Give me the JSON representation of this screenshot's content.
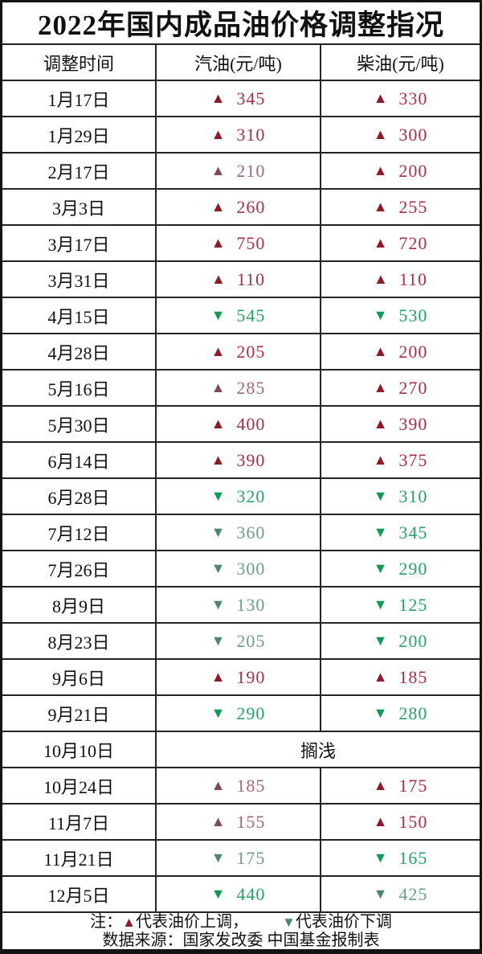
{
  "title": "2022年国内成品油价格调整指况",
  "columns": [
    "调整时间",
    "汽油(元/吨)",
    "柴油(元/吨)"
  ],
  "symbols": {
    "up": "▲",
    "down": "▼"
  },
  "colors": {
    "border": "#242424",
    "up_vivid_tri": "#8e1a2c",
    "up_vivid_txt": "#a33247",
    "up_muted_tri": "#7f4a57",
    "up_muted_txt": "#9e6b77",
    "down_vivid_tri": "#0f9a58",
    "down_vivid_txt": "#2aa069",
    "down_muted_tri": "#4f8571",
    "down_muted_txt": "#6d9c8c"
  },
  "rows": [
    {
      "date": "1月17日",
      "gasoline": {
        "dir": "up",
        "value": "345",
        "tone": "vivid"
      },
      "diesel": {
        "dir": "up",
        "value": "330",
        "tone": "vivid"
      }
    },
    {
      "date": "1月29日",
      "gasoline": {
        "dir": "up",
        "value": "310",
        "tone": "vivid"
      },
      "diesel": {
        "dir": "up",
        "value": "300",
        "tone": "vivid"
      }
    },
    {
      "date": "2月17日",
      "gasoline": {
        "dir": "up",
        "value": "210",
        "tone": "muted"
      },
      "diesel": {
        "dir": "up",
        "value": "200",
        "tone": "vivid"
      }
    },
    {
      "date": "3月3日",
      "gasoline": {
        "dir": "up",
        "value": "260",
        "tone": "vivid"
      },
      "diesel": {
        "dir": "up",
        "value": "255",
        "tone": "vivid"
      }
    },
    {
      "date": "3月17日",
      "gasoline": {
        "dir": "up",
        "value": "750",
        "tone": "vivid"
      },
      "diesel": {
        "dir": "up",
        "value": "720",
        "tone": "vivid"
      }
    },
    {
      "date": "3月31日",
      "gasoline": {
        "dir": "up",
        "value": "110",
        "tone": "vivid"
      },
      "diesel": {
        "dir": "up",
        "value": "110",
        "tone": "vivid"
      }
    },
    {
      "date": "4月15日",
      "gasoline": {
        "dir": "down",
        "value": "545",
        "tone": "vivid"
      },
      "diesel": {
        "dir": "down",
        "value": "530",
        "tone": "vivid"
      }
    },
    {
      "date": "4月28日",
      "gasoline": {
        "dir": "up",
        "value": "205",
        "tone": "vivid"
      },
      "diesel": {
        "dir": "up",
        "value": "200",
        "tone": "vivid"
      }
    },
    {
      "date": "5月16日",
      "gasoline": {
        "dir": "up",
        "value": "285",
        "tone": "muted"
      },
      "diesel": {
        "dir": "up",
        "value": "270",
        "tone": "vivid"
      }
    },
    {
      "date": "5月30日",
      "gasoline": {
        "dir": "up",
        "value": "400",
        "tone": "vivid"
      },
      "diesel": {
        "dir": "up",
        "value": "390",
        "tone": "vivid"
      }
    },
    {
      "date": "6月14日",
      "gasoline": {
        "dir": "up",
        "value": "390",
        "tone": "vivid"
      },
      "diesel": {
        "dir": "up",
        "value": "375",
        "tone": "vivid"
      }
    },
    {
      "date": "6月28日",
      "gasoline": {
        "dir": "down",
        "value": "320",
        "tone": "vivid"
      },
      "diesel": {
        "dir": "down",
        "value": "310",
        "tone": "vivid"
      }
    },
    {
      "date": "7月12日",
      "gasoline": {
        "dir": "down",
        "value": "360",
        "tone": "muted"
      },
      "diesel": {
        "dir": "down",
        "value": "345",
        "tone": "vivid"
      }
    },
    {
      "date": "7月26日",
      "gasoline": {
        "dir": "down",
        "value": "300",
        "tone": "muted"
      },
      "diesel": {
        "dir": "down",
        "value": "290",
        "tone": "vivid"
      }
    },
    {
      "date": "8月9日",
      "gasoline": {
        "dir": "down",
        "value": "130",
        "tone": "muted"
      },
      "diesel": {
        "dir": "down",
        "value": "125",
        "tone": "vivid"
      }
    },
    {
      "date": "8月23日",
      "gasoline": {
        "dir": "down",
        "value": "205",
        "tone": "muted"
      },
      "diesel": {
        "dir": "down",
        "value": "200",
        "tone": "vivid"
      }
    },
    {
      "date": "9月6日",
      "gasoline": {
        "dir": "up",
        "value": "190",
        "tone": "vivid"
      },
      "diesel": {
        "dir": "up",
        "value": "185",
        "tone": "vivid"
      }
    },
    {
      "date": "9月21日",
      "gasoline": {
        "dir": "down",
        "value": "290",
        "tone": "vivid"
      },
      "diesel": {
        "dir": "down",
        "value": "280",
        "tone": "vivid"
      }
    },
    {
      "date": "10月10日",
      "merged": "搁浅"
    },
    {
      "date": "10月24日",
      "gasoline": {
        "dir": "up",
        "value": "185",
        "tone": "muted"
      },
      "diesel": {
        "dir": "up",
        "value": "175",
        "tone": "vivid"
      }
    },
    {
      "date": "11月7日",
      "gasoline": {
        "dir": "up",
        "value": "155",
        "tone": "muted"
      },
      "diesel": {
        "dir": "up",
        "value": "150",
        "tone": "vivid"
      }
    },
    {
      "date": "11月21日",
      "gasoline": {
        "dir": "down",
        "value": "175",
        "tone": "muted"
      },
      "diesel": {
        "dir": "down",
        "value": "165",
        "tone": "vivid"
      }
    },
    {
      "date": "12月5日",
      "gasoline": {
        "dir": "down",
        "value": "440",
        "tone": "vivid"
      },
      "diesel": {
        "dir": "down",
        "value": "425",
        "tone": "muted"
      }
    }
  ],
  "note": {
    "prefix": "注：",
    "up_symbol": "▲",
    "up_text": "代表油价上调，",
    "down_symbol": "▼",
    "down_text": "代表油价下调",
    "source": "数据来源：国家发改委  中国基金报制表"
  },
  "chart_data": {
    "type": "table",
    "title": "2022年国内成品油价格调整指况",
    "categories": [
      "1月17日",
      "1月29日",
      "2月17日",
      "3月3日",
      "3月17日",
      "3月31日",
      "4月15日",
      "4月28日",
      "5月16日",
      "5月30日",
      "6月14日",
      "6月28日",
      "7月12日",
      "7月26日",
      "8月9日",
      "8月23日",
      "9月6日",
      "9月21日",
      "10月10日",
      "10月24日",
      "11月7日",
      "11月21日",
      "12月5日"
    ],
    "series": [
      {
        "name": "汽油(元/吨)",
        "values": [
          345,
          310,
          210,
          260,
          750,
          110,
          -545,
          205,
          285,
          400,
          390,
          -320,
          -360,
          -300,
          -130,
          -205,
          190,
          -290,
          "搁浅",
          185,
          155,
          -175,
          -440
        ]
      },
      {
        "name": "柴油(元/吨)",
        "values": [
          330,
          300,
          200,
          255,
          720,
          110,
          -530,
          200,
          270,
          390,
          375,
          -310,
          -345,
          -290,
          -125,
          -200,
          185,
          -280,
          "搁浅",
          175,
          150,
          -165,
          -425
        ]
      }
    ],
    "annotations": [
      "▲代表油价上调",
      "▼代表油价下调",
      "数据来源：国家发改委",
      "中国基金报制表"
    ]
  }
}
